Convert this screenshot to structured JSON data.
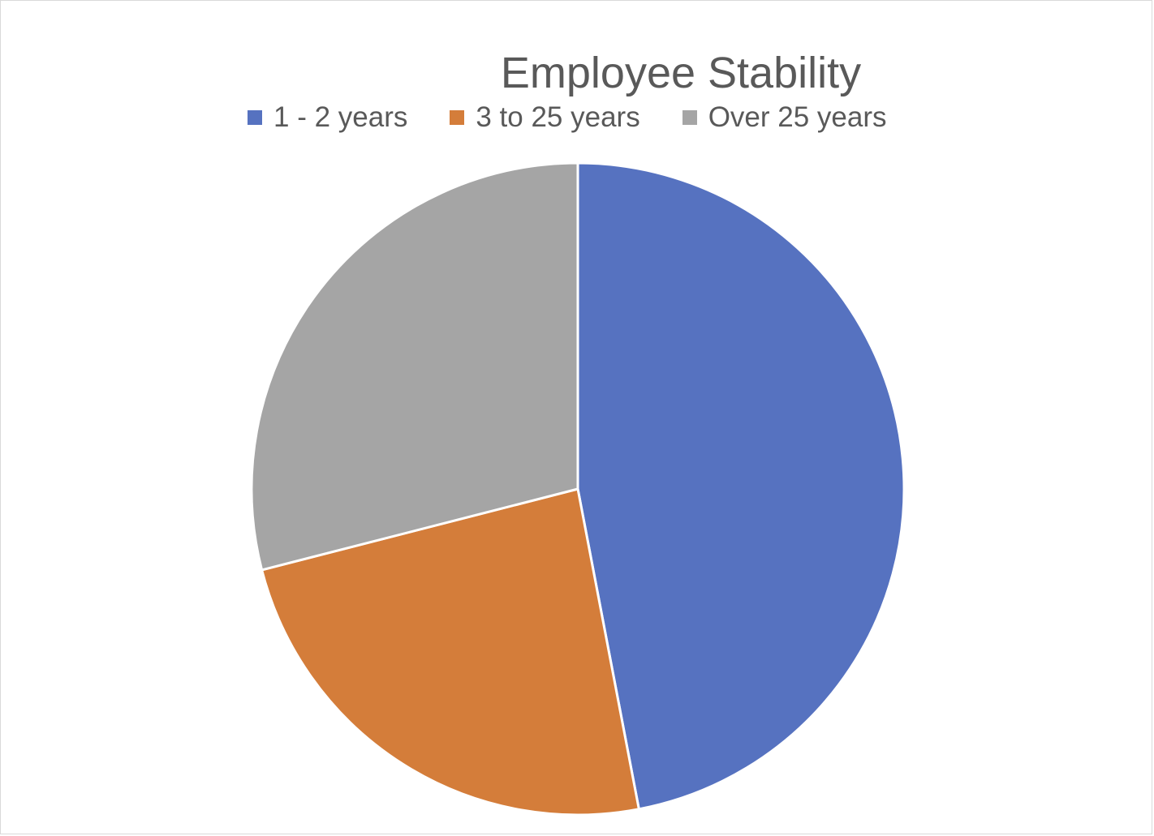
{
  "chart_data": {
    "type": "pie",
    "title": "Employee Stability",
    "categories": [
      "1 - 2 years",
      "3 to 25 years",
      "Over 25 years"
    ],
    "values": [
      47,
      24,
      29
    ],
    "colors": [
      "#5672c0",
      "#d47d3a",
      "#a5a5a5"
    ],
    "legend_position": "top",
    "start_angle_deg": 0,
    "direction": "clockwise",
    "slice_border_color": "#ffffff"
  }
}
